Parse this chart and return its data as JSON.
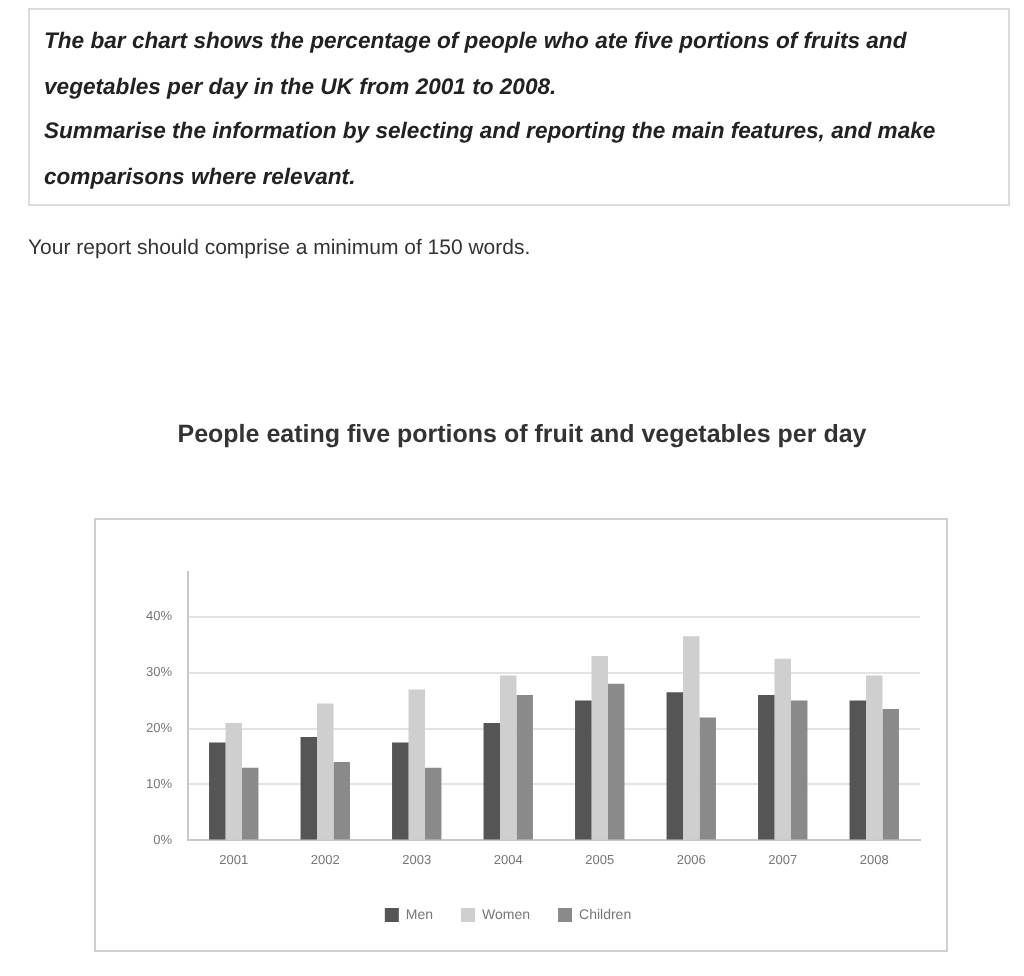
{
  "chart_data": {
    "type": "bar",
    "title": "People eating five portions of fruit and vegetables per day",
    "annotations": [
      "The bar chart shows the percentage of people who ate five portions of fruits and vegetables per day in the UK from 2001 to 2008.",
      "Summarise the information by selecting and reporting the main features, and make comparisons where relevant.",
      "Your report should comprise a minimum of 150 words."
    ],
    "categories": [
      "2001",
      "2002",
      "2003",
      "2004",
      "2005",
      "2006",
      "2007",
      "2008"
    ],
    "series": [
      {
        "name": "Men",
        "color": "#555555",
        "values": [
          17.5,
          18.5,
          17.5,
          21,
          25,
          26.5,
          26,
          25
        ]
      },
      {
        "name": "Women",
        "color": "#cfcfcf",
        "values": [
          21,
          24.5,
          27,
          29.5,
          33,
          36.5,
          32.5,
          29.5
        ]
      },
      {
        "name": "Children",
        "color": "#8a8a8a",
        "values": [
          13,
          14,
          13,
          26,
          28,
          22,
          25,
          23.5
        ]
      }
    ],
    "ylim": [
      0,
      48
    ],
    "yticks": [
      {
        "value": 0,
        "label": "0%"
      },
      {
        "value": 10,
        "label": "10%"
      },
      {
        "value": 20,
        "label": "20%"
      },
      {
        "value": 30,
        "label": "30%"
      },
      {
        "value": 40,
        "label": "40%"
      }
    ],
    "grid": "y",
    "legend": "bottom"
  }
}
